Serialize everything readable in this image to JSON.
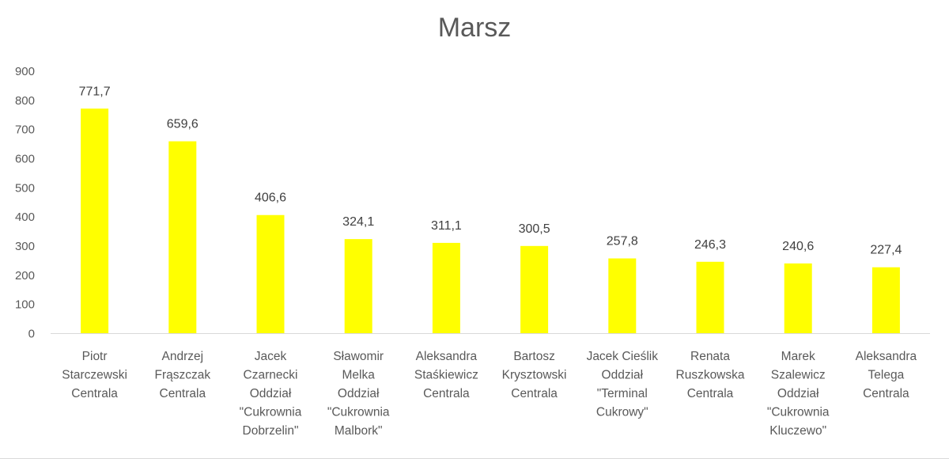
{
  "chart_data": {
    "type": "bar",
    "title": "Marsz",
    "xlabel": "",
    "ylabel": "",
    "ylim": [
      0,
      900
    ],
    "y_ticks": [
      "0",
      "100",
      "200",
      "300",
      "400",
      "500",
      "600",
      "700",
      "800",
      "900"
    ],
    "grid": false,
    "legend": "none",
    "bar_color": "#ffff00",
    "categories": [
      [
        "Piotr",
        "Starczewski",
        "Centrala"
      ],
      [
        "Andrzej",
        "Frąszczak",
        "Centrala"
      ],
      [
        "Jacek",
        "Czarnecki",
        "Oddział",
        "\"Cukrownia",
        "Dobrzelin\""
      ],
      [
        "Sławomir",
        "Melka",
        "Oddział",
        "\"Cukrownia",
        "Malbork\""
      ],
      [
        "Aleksandra",
        "Staśkiewicz",
        "Centrala"
      ],
      [
        "Bartosz",
        "Krysztowski",
        "Centrala"
      ],
      [
        "Jacek Cieślik",
        "Oddział",
        "\"Terminal",
        "Cukrowy\""
      ],
      [
        "Renata",
        "Ruszkowska",
        "Centrala"
      ],
      [
        "Marek",
        "Szalewicz",
        "Oddział",
        "\"Cukrownia",
        "Kluczewo\""
      ],
      [
        "Aleksandra",
        "Telega",
        "Centrala"
      ]
    ],
    "values": [
      771.7,
      659.6,
      406.6,
      324.1,
      311.1,
      300.5,
      257.8,
      246.3,
      240.6,
      227.4
    ],
    "data_labels": [
      "771,7",
      "659,6",
      "406,6",
      "324,1",
      "311,1",
      "300,5",
      "257,8",
      "246,3",
      "240,6",
      "227,4"
    ]
  }
}
